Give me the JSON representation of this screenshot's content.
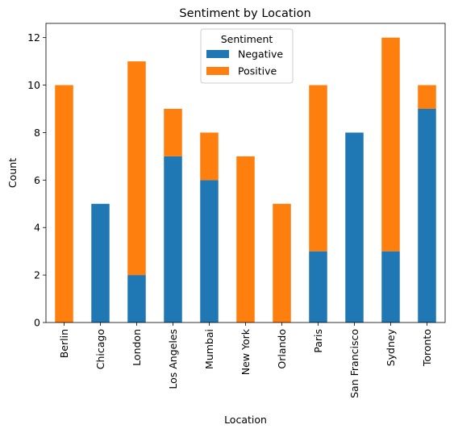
{
  "chart_data": {
    "type": "bar",
    "stacked": true,
    "title": "Sentiment by Location",
    "xlabel": "Location",
    "ylabel": "Count",
    "ylim": [
      0,
      12.6
    ],
    "yticks": [
      0,
      2,
      4,
      6,
      8,
      10,
      12
    ],
    "categories": [
      "Berlin",
      "Chicago",
      "London",
      "Los Angeles",
      "Mumbai",
      "New York",
      "Orlando",
      "Paris",
      "San Francisco",
      "Sydney",
      "Toronto"
    ],
    "series": [
      {
        "name": " Negative",
        "color": "#1f77b4",
        "values": [
          0,
          5,
          2,
          7,
          6,
          0,
          0,
          3,
          8,
          3,
          9
        ]
      },
      {
        "name": " Positive",
        "color": "#ff7f0e",
        "values": [
          10,
          0,
          9,
          2,
          2,
          7,
          5,
          7,
          0,
          9,
          1
        ]
      }
    ],
    "legend": {
      "title": "Sentiment",
      "placement": "top-center"
    },
    "grid": false
  }
}
